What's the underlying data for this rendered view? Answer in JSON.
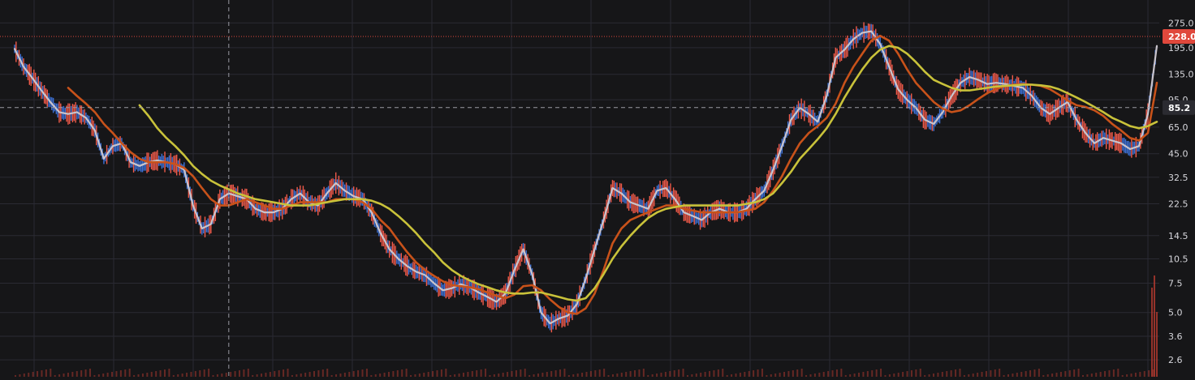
{
  "chart_data": {
    "type": "line",
    "title": "",
    "xlabel": "",
    "ylabel": "",
    "scale": "log",
    "ylim": [
      2.3,
      330
    ],
    "grid": true,
    "y_ticks": [
      {
        "value": 275.0,
        "label": "275.0"
      },
      {
        "value": 195.0,
        "label": "195.0"
      },
      {
        "value": 135.0,
        "label": "135.0"
      },
      {
        "value": 95.0,
        "label": "95.0"
      },
      {
        "value": 65.0,
        "label": "65.0"
      },
      {
        "value": 45.0,
        "label": "45.0"
      },
      {
        "value": 32.5,
        "label": "32.5"
      },
      {
        "value": 22.5,
        "label": "22.5"
      },
      {
        "value": 14.5,
        "label": "14.5"
      },
      {
        "value": 10.5,
        "label": "10.5"
      },
      {
        "value": 7.5,
        "label": "7.5"
      },
      {
        "value": 5.0,
        "label": "5.0"
      },
      {
        "value": 3.6,
        "label": "3.6"
      },
      {
        "value": 2.6,
        "label": "2.6"
      }
    ],
    "current_price": {
      "value": 228.0,
      "label": "228.0",
      "color": "#e0483c"
    },
    "crosshair": {
      "price": 85.2,
      "label": "85.2",
      "x_index": 24
    },
    "colors": {
      "price": "#c9c4cc",
      "candle_up": "#f05a4a",
      "candle_down": "#3d72d8",
      "ma_fast": "#c8521a",
      "ma_slow": "#c9c23a",
      "grid": "#2a2a33",
      "volume": "#b53a30"
    },
    "price_series": [
      {
        "name": "",
        "values": [
          192,
          150,
          128,
          108,
          92,
          80,
          78,
          80,
          74,
          62,
          42,
          50,
          52,
          40,
          38,
          40,
          41,
          40,
          39,
          36,
          22,
          16,
          17,
          24,
          26,
          25,
          24,
          21,
          20,
          20,
          21,
          24,
          26,
          23,
          22,
          26,
          30,
          27,
          25,
          24,
          20,
          15,
          12,
          10.5,
          9.5,
          8.8,
          8.4,
          7.5,
          6.8,
          7,
          7.4,
          7.1,
          6.6,
          6.2,
          5.8,
          6.5,
          9,
          12,
          8.5,
          5,
          4.3,
          4.6,
          4.8,
          5.6,
          8,
          12,
          18,
          28,
          26,
          23,
          22,
          21,
          27,
          28,
          24,
          20,
          19,
          18,
          20,
          21,
          20,
          20,
          21,
          24,
          27,
          36,
          50,
          72,
          85,
          78,
          70,
          100,
          170,
          190,
          220,
          240,
          245,
          205,
          150,
          110,
          95,
          85,
          72,
          68,
          80,
          100,
          120,
          130,
          125,
          118,
          120,
          118,
          115,
          112,
          100,
          85,
          78,
          85,
          92,
          72,
          60,
          52,
          56,
          54,
          52,
          48,
          50,
          78,
          200
        ]
      }
    ],
    "ma_fast_series": [
      {
        "name": "",
        "values": [
          null,
          null,
          null,
          null,
          null,
          null,
          112,
          100,
          90,
          80,
          68,
          60,
          52,
          46,
          42,
          40,
          40,
          40,
          39,
          37,
          33,
          28,
          24,
          22,
          22,
          23,
          24,
          23,
          22,
          21,
          21,
          22,
          23,
          23,
          23,
          23,
          24,
          24,
          24,
          23,
          21,
          18,
          16,
          13.5,
          11.5,
          10,
          9,
          8.3,
          7.7,
          7.3,
          7.2,
          7.1,
          6.9,
          6.6,
          6.3,
          6.1,
          6.4,
          7.2,
          7.3,
          6.8,
          6,
          5.4,
          5,
          4.9,
          5.3,
          6.5,
          9,
          13,
          16,
          18,
          19,
          20,
          21,
          22,
          22,
          21,
          20.5,
          20,
          20,
          20,
          20,
          20,
          20.5,
          21,
          23,
          27,
          33,
          42,
          52,
          60,
          66,
          74,
          90,
          120,
          150,
          180,
          215,
          230,
          215,
          180,
          145,
          120,
          105,
          92,
          84,
          80,
          82,
          88,
          96,
          104,
          110,
          115,
          117,
          118,
          117,
          115,
          110,
          102,
          94,
          88,
          86,
          82,
          76,
          68,
          62,
          56,
          54,
          60,
          120
        ]
      }
    ],
    "ma_slow_series": [
      {
        "name": "",
        "values": [
          null,
          null,
          null,
          null,
          null,
          null,
          null,
          null,
          null,
          null,
          null,
          null,
          null,
          null,
          88,
          76,
          64,
          56,
          50,
          44,
          38,
          34,
          31,
          29,
          27.5,
          26,
          25,
          24,
          23.5,
          23,
          22.5,
          22,
          22,
          22,
          22.5,
          23,
          23.5,
          24,
          24,
          24,
          23.5,
          22.5,
          21,
          19,
          17,
          15,
          13,
          11.5,
          10,
          9,
          8.3,
          7.8,
          7.4,
          7.1,
          6.8,
          6.6,
          6.5,
          6.5,
          6.6,
          6.6,
          6.4,
          6.2,
          6,
          5.9,
          6.1,
          7,
          8.5,
          10.5,
          12.5,
          14.5,
          16.5,
          18.5,
          20,
          21,
          21.5,
          22,
          22,
          22,
          22,
          22,
          22,
          22,
          22.5,
          23,
          24,
          26,
          30,
          35,
          42,
          48,
          55,
          64,
          78,
          98,
          120,
          145,
          170,
          190,
          200,
          195,
          180,
          160,
          140,
          125,
          118,
          112,
          108,
          108,
          110,
          112,
          114,
          115,
          116,
          117,
          117,
          116,
          114,
          110,
          104,
          98,
          92,
          86,
          80,
          74,
          70,
          66,
          64,
          66,
          70
        ]
      }
    ]
  }
}
